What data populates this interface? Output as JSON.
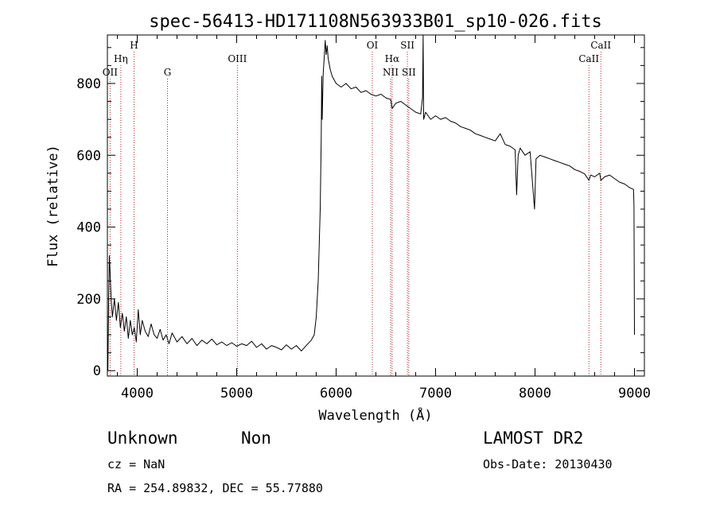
{
  "chart_data": {
    "type": "line",
    "title": "spec-56413-HD171108N563933B01_sp10-026.fits",
    "xlabel": "Wavelength (Å)",
    "ylabel": "Flux (relative)",
    "xlim": [
      3700,
      9100
    ],
    "ylim": [
      -15,
      935
    ],
    "x_ticks": [
      4000,
      5000,
      6000,
      7000,
      8000,
      9000
    ],
    "y_ticks": [
      0,
      200,
      400,
      600,
      800
    ],
    "grid": false,
    "series": [
      {
        "points": [
          [
            3705,
            0
          ],
          [
            3712,
            180
          ],
          [
            3720,
            320
          ],
          [
            3730,
            250
          ],
          [
            3740,
            190
          ],
          [
            3750,
            150
          ],
          [
            3770,
            200
          ],
          [
            3790,
            140
          ],
          [
            3810,
            190
          ],
          [
            3830,
            120
          ],
          [
            3850,
            160
          ],
          [
            3870,
            110
          ],
          [
            3890,
            150
          ],
          [
            3910,
            90
          ],
          [
            3930,
            140
          ],
          [
            3950,
            100
          ],
          [
            3970,
            120
          ],
          [
            3990,
            80
          ],
          [
            4010,
            170
          ],
          [
            4030,
            100
          ],
          [
            4050,
            140
          ],
          [
            4080,
            110
          ],
          [
            4110,
            95
          ],
          [
            4140,
            130
          ],
          [
            4170,
            100
          ],
          [
            4200,
            90
          ],
          [
            4230,
            115
          ],
          [
            4260,
            85
          ],
          [
            4290,
            100
          ],
          [
            4320,
            75
          ],
          [
            4350,
            105
          ],
          [
            4400,
            80
          ],
          [
            4450,
            95
          ],
          [
            4500,
            75
          ],
          [
            4550,
            90
          ],
          [
            4600,
            70
          ],
          [
            4650,
            85
          ],
          [
            4700,
            75
          ],
          [
            4750,
            88
          ],
          [
            4800,
            72
          ],
          [
            4850,
            80
          ],
          [
            4900,
            70
          ],
          [
            4950,
            78
          ],
          [
            5000,
            68
          ],
          [
            5050,
            75
          ],
          [
            5100,
            70
          ],
          [
            5150,
            82
          ],
          [
            5200,
            65
          ],
          [
            5250,
            75
          ],
          [
            5300,
            60
          ],
          [
            5350,
            70
          ],
          [
            5400,
            65
          ],
          [
            5450,
            58
          ],
          [
            5500,
            72
          ],
          [
            5550,
            60
          ],
          [
            5600,
            70
          ],
          [
            5650,
            55
          ],
          [
            5700,
            70
          ],
          [
            5750,
            85
          ],
          [
            5780,
            100
          ],
          [
            5800,
            150
          ],
          [
            5820,
            250
          ],
          [
            5840,
            450
          ],
          [
            5850,
            650
          ],
          [
            5855,
            820
          ],
          [
            5860,
            700
          ],
          [
            5870,
            830
          ],
          [
            5880,
            870
          ],
          [
            5890,
            920
          ],
          [
            5900,
            880
          ],
          [
            5910,
            905
          ],
          [
            5920,
            870
          ],
          [
            5940,
            840
          ],
          [
            5960,
            820
          ],
          [
            5980,
            810
          ],
          [
            6000,
            800
          ],
          [
            6050,
            790
          ],
          [
            6100,
            800
          ],
          [
            6150,
            785
          ],
          [
            6200,
            790
          ],
          [
            6250,
            775
          ],
          [
            6300,
            780
          ],
          [
            6350,
            770
          ],
          [
            6400,
            765
          ],
          [
            6450,
            770
          ],
          [
            6500,
            760
          ],
          [
            6550,
            755
          ],
          [
            6563,
            730
          ],
          [
            6600,
            745
          ],
          [
            6650,
            750
          ],
          [
            6700,
            740
          ],
          [
            6750,
            730
          ],
          [
            6800,
            720
          ],
          [
            6850,
            715
          ],
          [
            6869,
            760
          ],
          [
            6875,
            935
          ],
          [
            6880,
            700
          ],
          [
            6900,
            720
          ],
          [
            6950,
            700
          ],
          [
            7000,
            710
          ],
          [
            7050,
            700
          ],
          [
            7100,
            705
          ],
          [
            7150,
            695
          ],
          [
            7200,
            690
          ],
          [
            7250,
            680
          ],
          [
            7300,
            675
          ],
          [
            7350,
            670
          ],
          [
            7400,
            660
          ],
          [
            7450,
            655
          ],
          [
            7500,
            650
          ],
          [
            7550,
            645
          ],
          [
            7600,
            640
          ],
          [
            7650,
            660
          ],
          [
            7700,
            630
          ],
          [
            7750,
            625
          ],
          [
            7800,
            615
          ],
          [
            7815,
            490
          ],
          [
            7830,
            600
          ],
          [
            7850,
            620
          ],
          [
            7900,
            600
          ],
          [
            7950,
            610
          ],
          [
            7995,
            450
          ],
          [
            8010,
            590
          ],
          [
            8050,
            600
          ],
          [
            8100,
            595
          ],
          [
            8150,
            590
          ],
          [
            8200,
            585
          ],
          [
            8250,
            580
          ],
          [
            8300,
            575
          ],
          [
            8350,
            570
          ],
          [
            8400,
            560
          ],
          [
            8450,
            555
          ],
          [
            8500,
            548
          ],
          [
            8542,
            530
          ],
          [
            8560,
            545
          ],
          [
            8600,
            540
          ],
          [
            8650,
            550
          ],
          [
            8662,
            530
          ],
          [
            8700,
            540
          ],
          [
            8750,
            545
          ],
          [
            8800,
            535
          ],
          [
            8850,
            525
          ],
          [
            8900,
            520
          ],
          [
            8950,
            510
          ],
          [
            8990,
            505
          ],
          [
            8995,
            460
          ],
          [
            9000,
            100
          ]
        ]
      }
    ],
    "line_markers": [
      {
        "label": "OII",
        "x": 3727,
        "tier": 3
      },
      {
        "label": "Hη",
        "x": 3835,
        "tier": 2
      },
      {
        "label": "H",
        "x": 3968,
        "tier": 1
      },
      {
        "label": "G",
        "x": 4304,
        "tier": 3
      },
      {
        "label": "OIII",
        "x": 5007,
        "tier": 2
      },
      {
        "label": "OI",
        "x": 6364,
        "tier": 1
      },
      {
        "label": "Hα",
        "x": 6563,
        "tier": 2
      },
      {
        "label": "NII",
        "x": 6548,
        "tier": 3
      },
      {
        "label": "SII",
        "x": 6717,
        "tier": 1
      },
      {
        "label": "SII",
        "x": 6731,
        "tier": 3
      },
      {
        "label": "CaII",
        "x": 8542,
        "tier": 2
      },
      {
        "label": "CaII",
        "x": 8662,
        "tier": 1
      }
    ],
    "line_color": "#000000",
    "marker_color": "#b22222"
  },
  "footer": {
    "object_class": "Unknown",
    "subclass": "Non",
    "survey": "LAMOST DR2",
    "redshift": "cz = NaN",
    "obs_date": "Obs-Date: 20130430",
    "coords": "RA = 254.89832, DEC =  55.77880"
  }
}
